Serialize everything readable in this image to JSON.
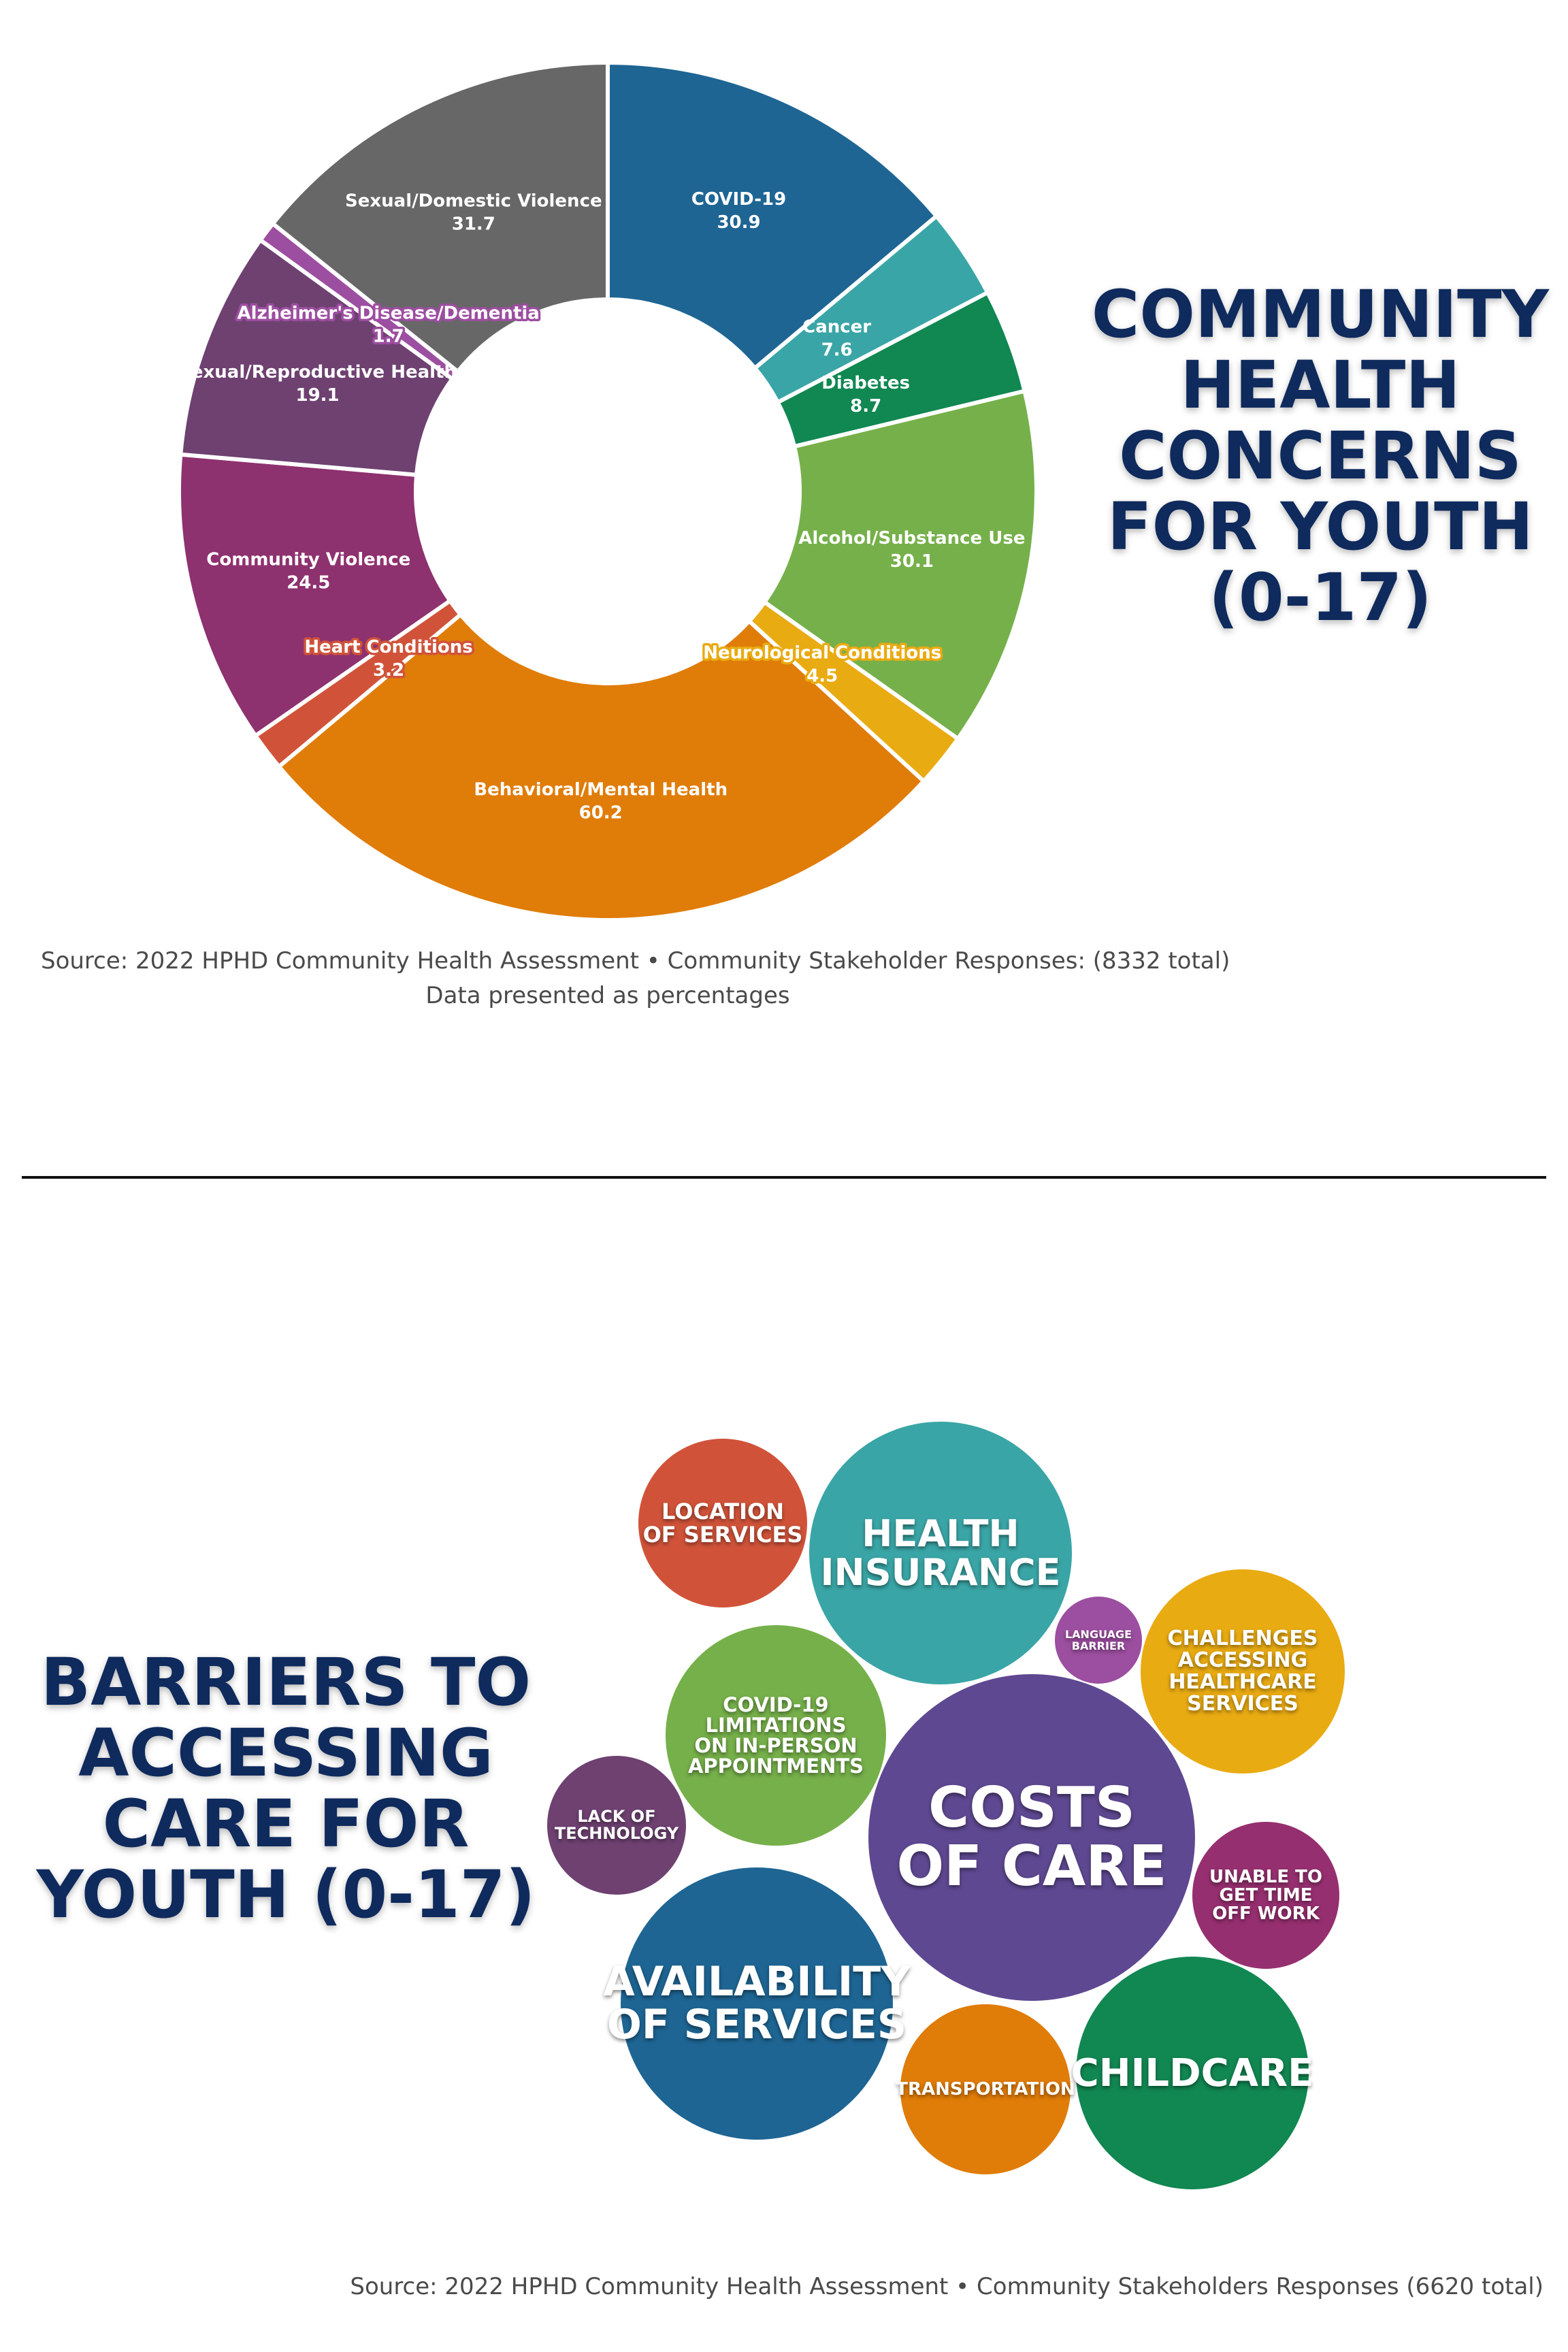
{
  "chart_data": [
    {
      "type": "pie",
      "variant": "donut",
      "title": "COMMUNITY HEALTH CONCERNS FOR YOUTH (0-17)",
      "unit": "percent",
      "slices": [
        {
          "label": "COVID-19",
          "value": 30.9,
          "color": "#1e6593"
        },
        {
          "label": "Cancer",
          "value": 7.6,
          "color": "#3aa5a6"
        },
        {
          "label": "Diabetes",
          "value": 8.7,
          "color": "#118752"
        },
        {
          "label": "Alcohol/Substance Use",
          "value": 30.1,
          "color": "#76b04a"
        },
        {
          "label": "Neurological Conditions",
          "value": 4.5,
          "color": "#e9ab12"
        },
        {
          "label": "Behavioral/Mental Health",
          "value": 60.2,
          "color": "#e07c08"
        },
        {
          "label": "Heart Conditions",
          "value": 3.2,
          "color": "#d05339"
        },
        {
          "label": "Community Violence",
          "value": 24.5,
          "color": "#8e316f"
        },
        {
          "label": "Sexual/Reproductive Health",
          "value": 19.1,
          "color": "#6e4171"
        },
        {
          "label": "Alzheimer's Disease/Dementia",
          "value": 1.7,
          "color": "#9c4ea0"
        },
        {
          "label": "Sexual/Domestic Violence",
          "value": 31.7,
          "color": "#676767"
        }
      ]
    },
    {
      "type": "bubble",
      "title": "BARRIERS TO ACCESSING CARE FOR YOUTH (0-17)",
      "bubbles": [
        {
          "label": "LOCATION\nOF SERVICES",
          "color": "#d05339"
        },
        {
          "label": "HEALTH\nINSURANCE",
          "color": "#3aa5a6"
        },
        {
          "label": "LANGUAGE\nBARRIER",
          "color": "#9c4ea0"
        },
        {
          "label": "CHALLENGES\nACCESSING\nHEALTHCARE\nSERVICES",
          "color": "#e9ab12"
        },
        {
          "label": "COVID-19\nLIMITATIONS\nON IN-PERSON\nAPPOINTMENTS",
          "color": "#76b04a"
        },
        {
          "label": "LACK OF\nTECHNOLOGY",
          "color": "#6e4171"
        },
        {
          "label": "COSTS\nOF CARE",
          "color": "#5e4891"
        },
        {
          "label": "UNABLE TO\nGET TIME\nOFF WORK",
          "color": "#962f6f"
        },
        {
          "label": "AVAILABILITY\nOF SERVICES",
          "color": "#1e6593"
        },
        {
          "label": "TRANSPORTATION",
          "color": "#e07c08"
        },
        {
          "label": "CHILDCARE",
          "color": "#118752"
        }
      ]
    }
  ],
  "text": {
    "title_top": [
      "COMMUNITY",
      "HEALTH",
      "CONCERNS",
      "FOR YOUTH",
      "(0-17)"
    ],
    "title_bottom": [
      "BARRIERS TO",
      "ACCESSING",
      "CARE FOR",
      "YOUTH (0-17)"
    ],
    "source_top": "Source: 2022 HPHD Community Health Assessment • Community Stakeholder Responses: (8332 total)",
    "note_top": "Data presented as percentages",
    "source_bottom": "Source: 2022 HPHD Community Health Assessment • Community Stakeholders Responses (6620 total)"
  }
}
